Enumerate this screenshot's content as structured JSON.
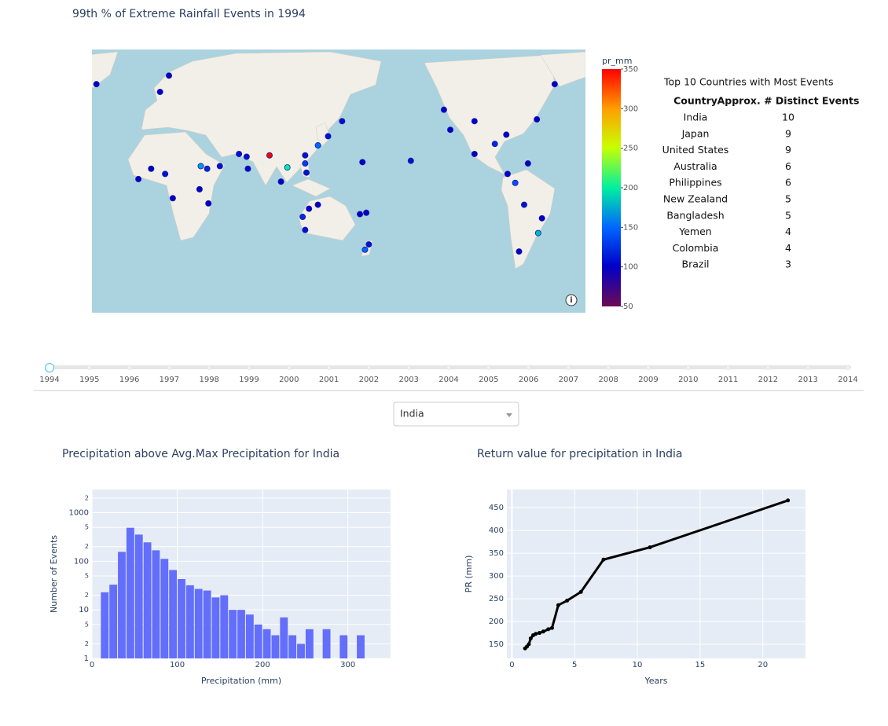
{
  "chart_data": [
    {
      "type": "scattermap",
      "title": "99th % of Extreme Rainfall Events in 1994",
      "lon": [
        -45,
        12,
        5,
        -12,
        -2,
        9,
        37,
        42,
        52,
        36,
        43,
        15,
        67,
        73,
        74,
        91,
        105,
        100,
        119,
        129,
        137,
        148,
        120,
        119,
        117,
        119,
        122,
        162,
        167,
        169,
        166,
        164,
        -158,
        -132,
        -127,
        -108,
        -92,
        -83,
        -59,
        -76,
        -69,
        -55,
        -58,
        -73,
        -82,
        -66,
        -108,
        129
      ],
      "lat": [
        62,
        65,
        59,
        5,
        13,
        9,
        15,
        13,
        15,
        -3,
        -14,
        -10,
        24,
        22,
        13,
        23,
        14,
        3,
        23,
        30,
        36,
        45,
        10,
        17,
        -24,
        -33,
        -18,
        -22,
        -21,
        -42,
        -45,
        18,
        19,
        51,
        40,
        45,
        31,
        37,
        46,
        2,
        -15,
        -25,
        -35,
        -46,
        9,
        17,
        24,
        -15
      ],
      "values": [
        100,
        100,
        100,
        100,
        100,
        110,
        170,
        120,
        110,
        100,
        100,
        100,
        110,
        110,
        105,
        350,
        200,
        100,
        110,
        150,
        110,
        110,
        110,
        130,
        120,
        110,
        100,
        100,
        100,
        110,
        150,
        100,
        110,
        100,
        100,
        100,
        120,
        100,
        100,
        140,
        110,
        100,
        180,
        100,
        100,
        100,
        100,
        100
      ],
      "colorbar_title": "pr_mm",
      "clim": [
        50,
        350
      ],
      "cticks": [
        50,
        100,
        150,
        200,
        250,
        300,
        350
      ],
      "colorscale": [
        [
          0,
          "#6e0a55"
        ],
        [
          0.17,
          "#0000c8"
        ],
        [
          0.33,
          "#0064ff"
        ],
        [
          0.5,
          "#00f0a0"
        ],
        [
          0.67,
          "#c8ff00"
        ],
        [
          0.83,
          "#ffa000"
        ],
        [
          1,
          "#ff0000"
        ]
      ]
    },
    {
      "type": "histogram",
      "title": "Precipitation above Avg.Max Precipitation for India",
      "x_label": "Precipitation (mm)",
      "y_label": "Number of Events",
      "bins": [
        10,
        20,
        30,
        40,
        50,
        60,
        70,
        80,
        90,
        100,
        110,
        120,
        130,
        140,
        150,
        160,
        170,
        180,
        190,
        200,
        210,
        220,
        230,
        240,
        250,
        260,
        270,
        280,
        290,
        300,
        310,
        320
      ],
      "values": [
        23,
        33,
        156,
        490,
        354,
        245,
        168,
        112,
        66,
        43,
        32,
        27,
        25,
        18,
        20,
        10,
        10,
        8,
        5,
        4,
        3,
        7,
        3,
        2,
        4,
        0,
        4,
        0,
        3,
        0,
        3
      ],
      "color": "#636efa",
      "log_y": true,
      "grid": true,
      "xlim": [
        0,
        350
      ],
      "xticks": [
        0,
        100,
        200,
        300
      ],
      "ylim": [
        1,
        3000
      ],
      "yticks": [
        1,
        2,
        5,
        10,
        {
          "value": 20,
          "label": "2"
        },
        {
          "value": 50,
          "label": "5"
        },
        100,
        {
          "value": 200,
          "label": "2"
        },
        {
          "value": 500,
          "label": "5"
        },
        1000,
        {
          "value": 2000,
          "label": "2"
        }
      ]
    },
    {
      "type": "line",
      "title": "Return value for precipitation in India",
      "x_label": "Years",
      "y_label": "PR (mm)",
      "x": [
        1.05,
        1.2,
        1.35,
        1.5,
        1.7,
        1.9,
        2.2,
        2.5,
        2.9,
        3.2,
        3.7,
        4.4,
        5.5,
        7.3,
        11,
        22
      ],
      "values": [
        141,
        145,
        150,
        163,
        170,
        173,
        175,
        178,
        183,
        186,
        236,
        246,
        265,
        336,
        363,
        466
      ],
      "color": "#000000",
      "grid": true,
      "xlim": [
        -0.4,
        23.4
      ],
      "xticks": [
        0,
        5,
        10,
        15,
        20
      ],
      "ylim": [
        119,
        490
      ],
      "yticks": [
        150,
        200,
        250,
        300,
        350,
        400,
        450
      ]
    }
  ],
  "table": {
    "title": "Top 10 Countries with Most Events",
    "columns": [
      "Country",
      "Approx. # Distinct Events"
    ],
    "rows": [
      [
        "India",
        10
      ],
      [
        "Japan",
        9
      ],
      [
        "United States",
        9
      ],
      [
        "Australia",
        6
      ],
      [
        "Philippines",
        6
      ],
      [
        "New Zealand",
        5
      ],
      [
        "Bangladesh",
        5
      ],
      [
        "Yemen",
        4
      ],
      [
        "Colombia",
        4
      ],
      [
        "Brazil",
        3
      ]
    ]
  },
  "slider": {
    "steps": [
      1994,
      1995,
      1996,
      1997,
      1998,
      1999,
      2000,
      2001,
      2002,
      2003,
      2004,
      2005,
      2006,
      2007,
      2008,
      2009,
      2010,
      2011,
      2012,
      2013,
      2014
    ],
    "active": 0
  },
  "dropdown": {
    "value": "India"
  }
}
